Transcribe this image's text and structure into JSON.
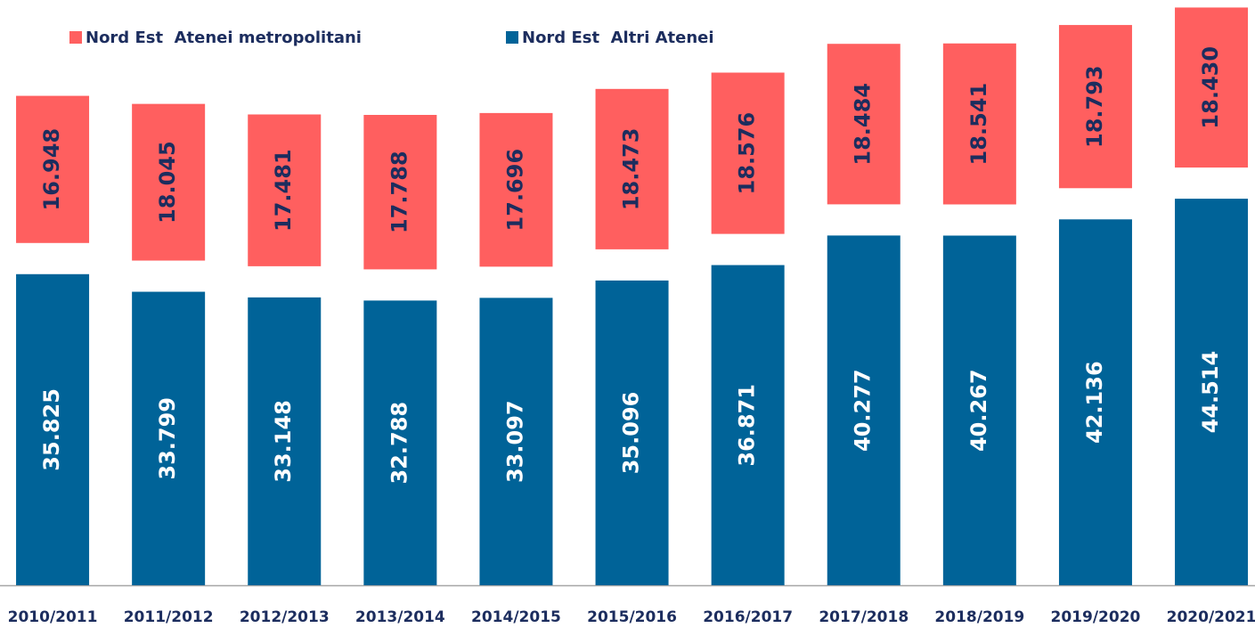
{
  "chart_data": {
    "type": "stacked_bar",
    "categories": [
      "2010/2011",
      "2011/2012",
      "2012/2013",
      "2013/2014",
      "2014/2015",
      "2015/2016",
      "2016/2017",
      "2017/2018",
      "2018/2019",
      "2019/2020",
      "2020/2021"
    ],
    "series": [
      {
        "name": "Nord Est  Atenei metropolitani",
        "color": "#ff5f5f",
        "values": [
          16948,
          18045,
          17481,
          17788,
          17696,
          18473,
          18576,
          18484,
          18541,
          18793,
          18430
        ],
        "value_labels": [
          "16.948",
          "18.045",
          "17.481",
          "17.788",
          "17.696",
          "18.473",
          "18.576",
          "18.484",
          "18.541",
          "18.793",
          "18.430"
        ]
      },
      {
        "name": "Nord Est  Altri Atenei",
        "color": "#006398",
        "values": [
          35825,
          33799,
          33148,
          32788,
          33097,
          35096,
          36871,
          40277,
          40267,
          42136,
          44514
        ],
        "value_labels": [
          "35.825",
          "33.799",
          "33.148",
          "32.788",
          "33.097",
          "35.096",
          "36.871",
          "40.277",
          "40.267",
          "42.136",
          "44.514"
        ]
      }
    ],
    "ylim": [
      0,
      67400
    ],
    "legend": "top-left"
  }
}
